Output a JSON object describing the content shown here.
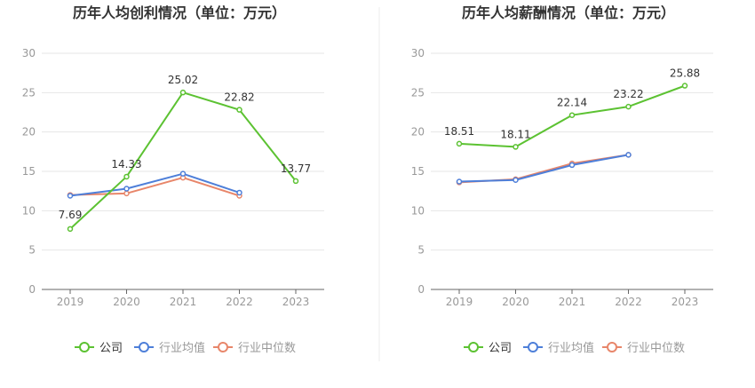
{
  "colors": {
    "company": "#5cc232",
    "industry_avg": "#4e7fd9",
    "industry_median": "#e8866a"
  },
  "legend": {
    "company": "公司",
    "industry_avg": "行业均值",
    "industry_median": "行业中位数"
  },
  "chart_data": [
    {
      "type": "line",
      "title": "历年人均创利情况（单位：万元）",
      "categories": [
        "2019",
        "2020",
        "2021",
        "2022",
        "2023"
      ],
      "ylim": [
        0,
        30
      ],
      "yticks": [
        0,
        5,
        10,
        15,
        20,
        25,
        30
      ],
      "grid": true,
      "legend_position": "bottom",
      "series": [
        {
          "key": "company",
          "name": "公司",
          "values": [
            7.69,
            14.33,
            25.02,
            22.82,
            13.77
          ],
          "labels": [
            "7.69",
            "14.33",
            "25.02",
            "22.82",
            "13.77"
          ]
        },
        {
          "key": "industry_avg",
          "name": "行业均值",
          "values": [
            11.9,
            12.8,
            14.7,
            12.3,
            null
          ]
        },
        {
          "key": "industry_median",
          "name": "行业中位数",
          "values": [
            12.0,
            12.2,
            14.2,
            11.9,
            null
          ]
        }
      ]
    },
    {
      "type": "line",
      "title": "历年人均薪酬情况（单位：万元）",
      "categories": [
        "2019",
        "2020",
        "2021",
        "2022",
        "2023"
      ],
      "ylim": [
        0,
        30
      ],
      "yticks": [
        0,
        5,
        10,
        15,
        20,
        25,
        30
      ],
      "grid": true,
      "legend_position": "bottom",
      "series": [
        {
          "key": "company",
          "name": "公司",
          "values": [
            18.51,
            18.11,
            22.14,
            23.22,
            25.88
          ],
          "labels": [
            "18.51",
            "18.11",
            "22.14",
            "23.22",
            "25.88"
          ]
        },
        {
          "key": "industry_avg",
          "name": "行业均值",
          "values": [
            13.7,
            13.9,
            15.8,
            17.1,
            null
          ]
        },
        {
          "key": "industry_median",
          "name": "行业中位数",
          "values": [
            13.6,
            14.0,
            16.0,
            17.1,
            null
          ]
        }
      ]
    }
  ]
}
